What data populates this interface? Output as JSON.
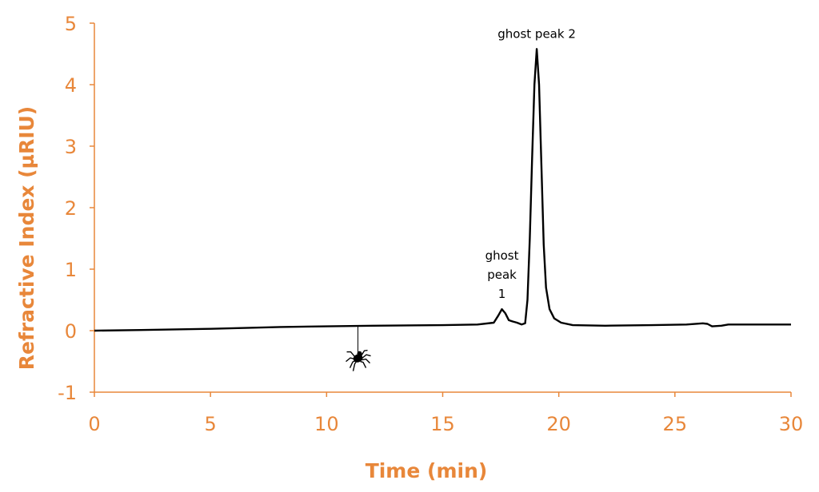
{
  "chart_data": {
    "type": "line",
    "title": "",
    "xlabel": "Time (min)",
    "ylabel": "Refractive Index (µRIU)",
    "xlim": [
      0,
      30
    ],
    "ylim": [
      -1,
      5
    ],
    "xticks": [
      0,
      5,
      10,
      15,
      20,
      25,
      30
    ],
    "yticks": [
      -1,
      0,
      1,
      2,
      3,
      4,
      5
    ],
    "grid": false,
    "axis_color": "#E8873A",
    "line_color": "#000000",
    "series": [
      {
        "x": [
          0,
          2,
          5,
          8,
          10,
          12,
          15,
          16.5,
          17.2,
          17.4,
          17.55,
          17.7,
          17.85,
          18.0,
          18.2,
          18.4,
          18.55,
          18.65,
          18.75,
          18.85,
          18.95,
          19.05,
          19.15,
          19.25,
          19.35,
          19.45,
          19.6,
          19.8,
          20.1,
          20.6,
          22,
          24,
          25.5,
          26.2,
          26.4,
          26.6,
          27,
          27.3,
          30
        ],
        "y": [
          0,
          0.01,
          0.03,
          0.06,
          0.07,
          0.08,
          0.09,
          0.1,
          0.13,
          0.25,
          0.35,
          0.28,
          0.17,
          0.15,
          0.13,
          0.1,
          0.12,
          0.5,
          1.5,
          2.8,
          4.0,
          4.58,
          4.0,
          2.7,
          1.4,
          0.7,
          0.35,
          0.2,
          0.13,
          0.09,
          0.08,
          0.09,
          0.1,
          0.12,
          0.11,
          0.07,
          0.08,
          0.1,
          0.1
        ]
      }
    ],
    "annotations": [
      {
        "lines": [
          "ghost",
          "peak",
          "1"
        ],
        "x": 17.55,
        "y": 0.35
      },
      {
        "lines": [
          "ghost peak 2"
        ],
        "x": 19.05,
        "y": 4.58
      }
    ],
    "decoration": {
      "icon": "spider-icon",
      "x": 11.35
    }
  }
}
